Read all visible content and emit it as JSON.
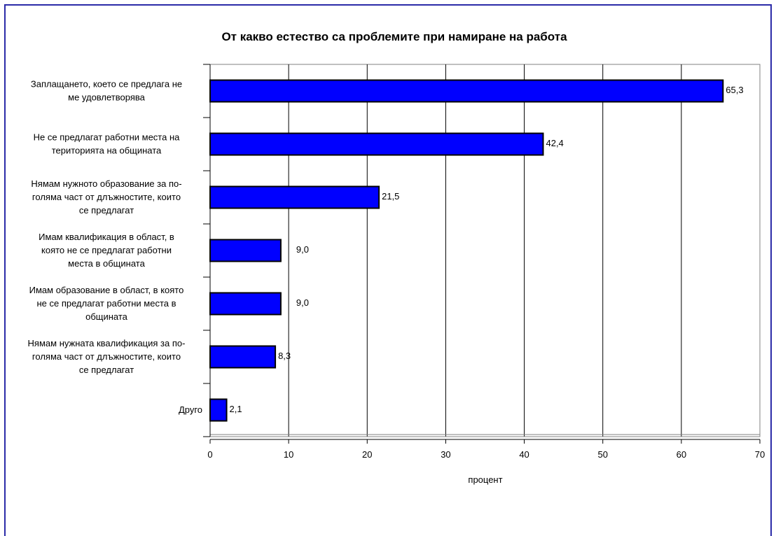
{
  "chart_data": {
    "type": "bar",
    "orientation": "horizontal",
    "title": "От какво естество са проблемите при намиране на работа",
    "xlabel": "процент",
    "ylabel": "",
    "xlim": [
      0,
      70
    ],
    "x_ticks": [
      "0",
      "10",
      "20",
      "30",
      "40",
      "50",
      "60",
      "70"
    ],
    "grid": "vertical",
    "bar_color": "#0000ff",
    "categories": [
      [
        "Заплащането, което се предлага не",
        "ме удовлетворява"
      ],
      [
        "Не се предлагат работни места на",
        "територията на общината"
      ],
      [
        "Нямам нужното образование за по-",
        "голяма част от длъжностите, които",
        "се предлагат"
      ],
      [
        "Имам квалификация в област, в",
        "която не се предлагат работни",
        "места в общината"
      ],
      [
        "Имам образование в област, в която",
        "не се предлагат работни места в",
        "общината"
      ],
      [
        "Нямам нужната квалификация за по-",
        "голяма част от длъжностите, които",
        "се предлагат"
      ],
      [
        "Друго"
      ]
    ],
    "values": [
      65.3,
      42.4,
      21.5,
      9.0,
      9.0,
      8.3,
      2.1
    ],
    "value_labels": [
      "65,3",
      "42,4",
      "21,5",
      "9,0",
      "9,0",
      "8,3",
      "2,1"
    ]
  }
}
